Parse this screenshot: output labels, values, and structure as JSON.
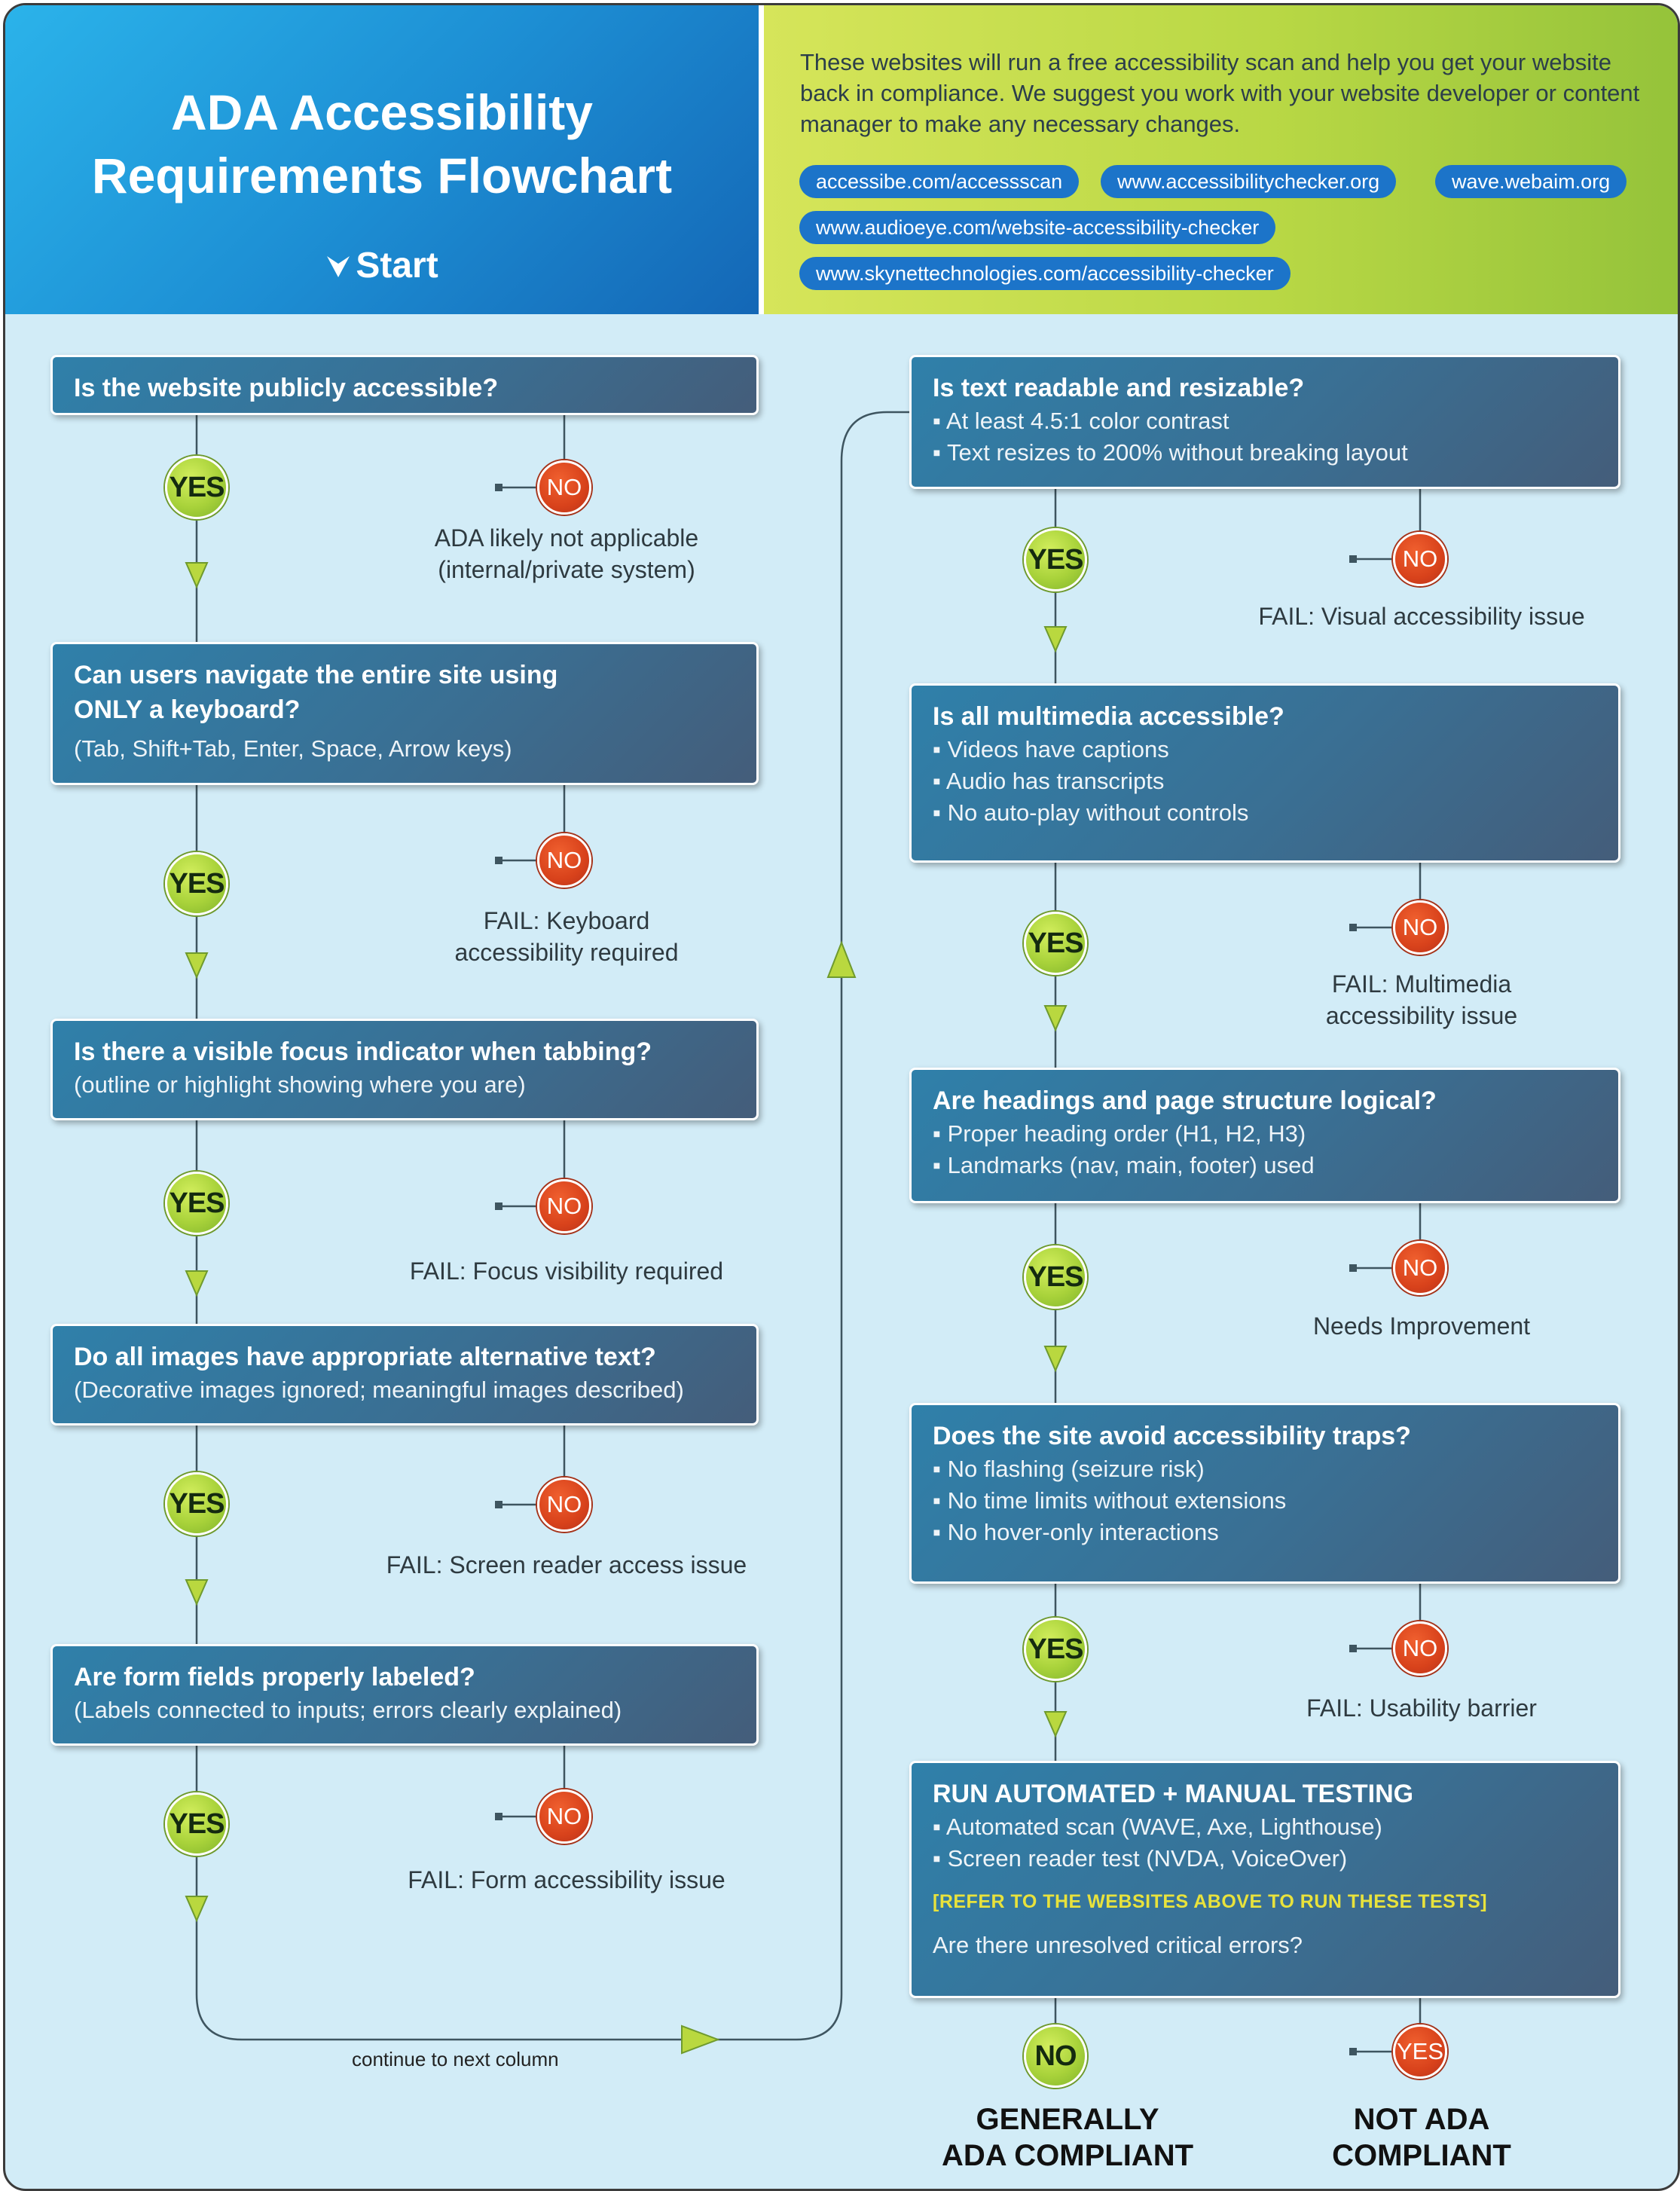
{
  "header": {
    "title_line1": "ADA Accessibility",
    "title_line2": "Requirements Flowchart",
    "start": "Start",
    "intro": "These websites will run a free accessibility scan and help you get your website back in compliance. We suggest you work with your website developer or content manager to make any necessary changes.",
    "links": [
      "accessibe.com/accessscan",
      "www.accessibilitychecker.org",
      "wave.webaim.org",
      "www.audioeye.com/website-accessibility-checker",
      "www.skynettechnologies.com/accessibility-checker"
    ]
  },
  "labels": {
    "yes": "YES",
    "no": "NO"
  },
  "left": [
    {
      "title": "Is the website publicly accessible?",
      "sub": "",
      "fail": "ADA likely not applicable\n(internal/private system)"
    },
    {
      "title": "Can users navigate the entire site using\nONLY a keyboard?",
      "sub": "(Tab, Shift+Tab, Enter, Space, Arrow keys)",
      "fail": "FAIL: Keyboard\naccessibility required"
    },
    {
      "title": "Is there a visible focus indicator when tabbing?",
      "sub": "(outline or highlight showing where you are)",
      "fail": "FAIL: Focus visibility required"
    },
    {
      "title": "Do all images have appropriate alternative text?",
      "sub": "(Decorative images ignored; meaningful images described)",
      "fail": "FAIL: Screen reader access issue"
    },
    {
      "title": "Are form fields properly labeled?",
      "sub": "(Labels connected to inputs; errors clearly explained)",
      "fail": "FAIL: Form accessibility issue"
    }
  ],
  "continue_text": "continue to next column",
  "right": [
    {
      "title": "Is text readable and resizable?",
      "bullets": [
        "At least 4.5:1 color contrast",
        "Text resizes to 200% without breaking layout"
      ],
      "fail": "FAIL: Visual accessibility issue"
    },
    {
      "title": "Is all multimedia accessible?",
      "bullets": [
        "Videos have captions",
        "Audio has transcripts",
        "No auto-play without controls"
      ],
      "fail": "FAIL: Multimedia\naccessibility issue"
    },
    {
      "title": "Are headings and page structure logical?",
      "bullets": [
        "Proper heading order (H1, H2, H3)",
        "Landmarks (nav, main, footer) used"
      ],
      "fail": "Needs Improvement"
    },
    {
      "title": "Does the site avoid accessibility traps?",
      "bullets": [
        "No flashing (seizure risk)",
        "No time limits without extensions",
        "No hover-only interactions"
      ],
      "fail": "FAIL: Usability barrier"
    }
  ],
  "final_box": {
    "title": "RUN AUTOMATED + MANUAL TESTING",
    "bullets": [
      "Automated scan (WAVE, Axe, Lighthouse)",
      "Screen reader test (NVDA, VoiceOver)"
    ],
    "note": "[REFER TO THE WEBSITES ABOVE TO RUN THESE TESTS]",
    "question": "Are there unresolved critical errors?"
  },
  "outcomes": {
    "compliant": "GENERALLY\nADA COMPLIANT",
    "not_compliant": "NOT ADA\nCOMPLIANT"
  },
  "colors": {
    "yes_green": "#a8d23a",
    "no_red": "#d8421b",
    "box_blue": "#3a6f93",
    "background": "#d2ecf7",
    "note_yellow": "#e8e23c"
  }
}
